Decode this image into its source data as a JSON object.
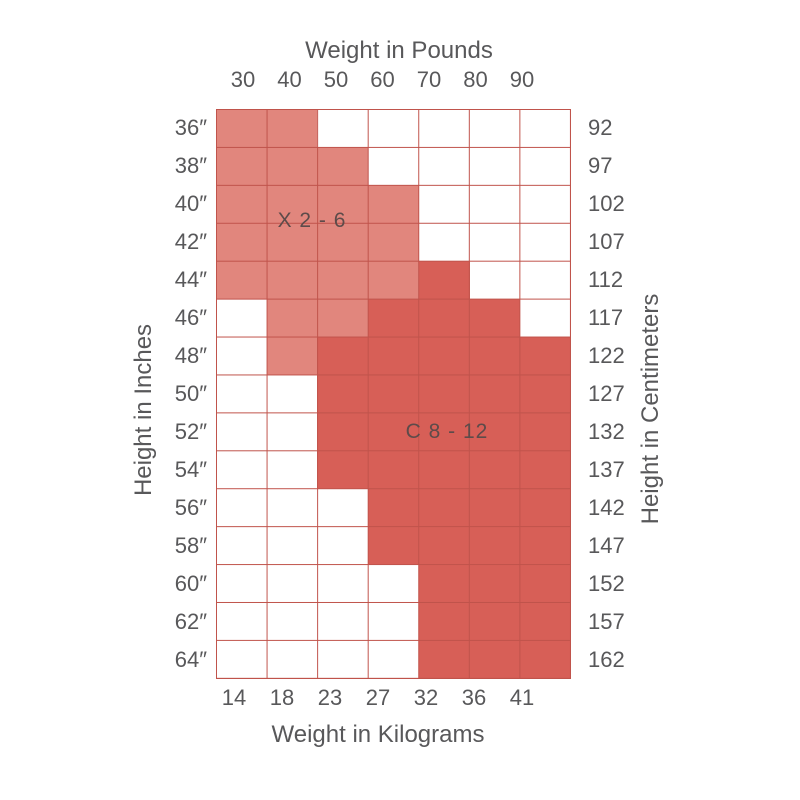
{
  "chart_data": {
    "type": "heatmap",
    "description": "Children's clothing size chart: height vs weight grid with two size zones",
    "top_axis": {
      "title": "Weight in Pounds",
      "ticks": [
        "30",
        "40",
        "50",
        "60",
        "70",
        "80",
        "90"
      ]
    },
    "bottom_axis": {
      "title": "Weight in Kilograms",
      "ticks": [
        "14",
        "18",
        "23",
        "27",
        "32",
        "36",
        "41"
      ]
    },
    "left_axis": {
      "title": "Height in Inches",
      "ticks": [
        "36″",
        "38″",
        "40″",
        "42″",
        "44″",
        "46″",
        "48″",
        "50″",
        "52″",
        "54″",
        "56″",
        "58″",
        "60″",
        "62″",
        "64″"
      ]
    },
    "right_axis": {
      "title": "Height in Centimeters",
      "ticks": [
        "92",
        "97",
        "102",
        "107",
        "112",
        "117",
        "122",
        "127",
        "132",
        "137",
        "142",
        "147",
        "152",
        "157",
        "162"
      ]
    },
    "zones": [
      {
        "key": "L",
        "label": "X 2 - 6",
        "color": "#e1867d"
      },
      {
        "key": "D",
        "label": "C 8 - 12",
        "color": "#d75f57"
      }
    ],
    "grid": {
      "cols": 7,
      "rows": 15,
      "cell_map": [
        "LL.....",
        "LLL....",
        "LLLL...",
        "LLLL...",
        "LLLLD..",
        ".LLDDD.",
        ".LDDDDD",
        "..DDDDD",
        "..DDDDD",
        "..DDDDD",
        "...DDDD",
        "...DDDD",
        "....DDD",
        "....DDD",
        "....DDD"
      ],
      "legend": {
        "L": "zone X 2 - 6 (light)",
        "D": "zone C 8 - 12 (dark)",
        ".": "empty"
      }
    },
    "colors": {
      "light_fill": "#e1867d",
      "dark_fill": "#d75f57",
      "grid_line": "#c0534b",
      "axis_text": "#58585a",
      "zone_text": "#5d4b4a",
      "background": "#ffffff"
    }
  }
}
